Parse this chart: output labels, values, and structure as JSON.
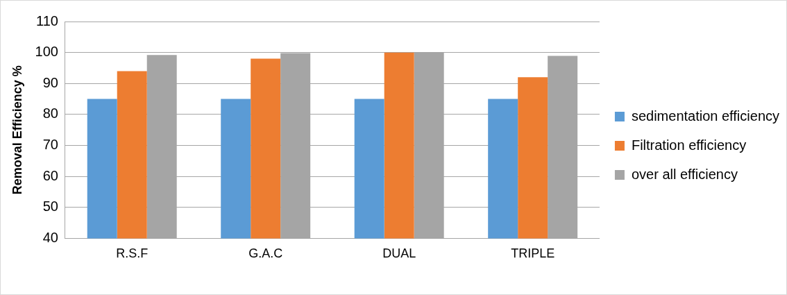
{
  "chart_data": {
    "type": "bar",
    "ylabel": "Removal Efficiency %",
    "categories": [
      "R.S.F",
      "G.A.C",
      "DUAL",
      "TRIPLE"
    ],
    "series": [
      {
        "name": "sedimentation efficiency",
        "color": "#5b9bd5",
        "values": [
          85,
          85,
          85,
          85
        ]
      },
      {
        "name": "Filtration efficiency",
        "color": "#ed7d31",
        "values": [
          94,
          98,
          100,
          92
        ]
      },
      {
        "name": "over all efficiency",
        "color": "#a5a5a5",
        "values": [
          99.2,
          99.8,
          100,
          98.9
        ]
      }
    ],
    "ylim": [
      40,
      110
    ],
    "yticks": [
      40,
      50,
      60,
      70,
      80,
      90,
      100,
      110
    ],
    "grid": "y",
    "legend": "right"
  }
}
